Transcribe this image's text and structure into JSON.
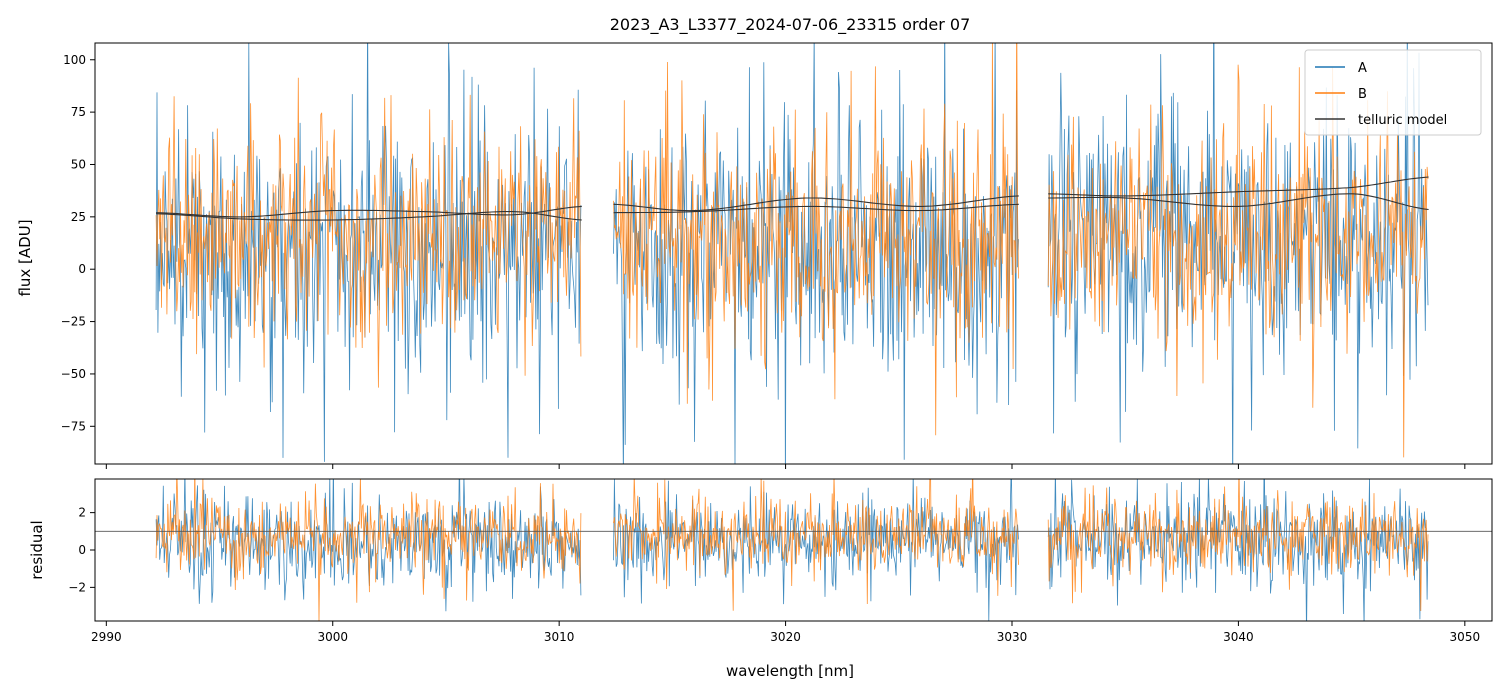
{
  "chart_data": {
    "type": "line",
    "title": "2023_A3_L3377_2024-07-06_23315  order 07",
    "xlabel": "wavelength [nm]",
    "xlim": [
      2989.5,
      3051.2
    ],
    "xticks": [
      2990,
      3000,
      3010,
      3020,
      3030,
      3040,
      3050
    ],
    "xtick_labels": [
      "2990",
      "3000",
      "3010",
      "3020",
      "3030",
      "3040",
      "3050"
    ],
    "segments": [
      [
        2992.2,
        3011.0
      ],
      [
        3012.4,
        3030.3
      ],
      [
        3031.6,
        3048.4
      ]
    ],
    "legend": {
      "position": "top-right",
      "entries": [
        "A",
        "B",
        "telluric model"
      ]
    },
    "colors": {
      "A": "#1f77b4",
      "B": "#ff7f0e",
      "model": "#333333"
    },
    "panels": [
      {
        "id": "flux",
        "ylabel": "flux [ADU]",
        "ylim": [
          -93,
          108
        ],
        "yticks": [
          -75,
          -50,
          -25,
          0,
          25,
          50,
          75,
          100
        ],
        "ytick_labels": [
          "−75",
          "−50",
          "−25",
          "0",
          "25",
          "50",
          "75",
          "100"
        ],
        "series": [
          {
            "name": "A",
            "center": 12,
            "noise_sigma": 30
          },
          {
            "name": "B",
            "center": 15,
            "noise_sigma": 24
          }
        ],
        "telluric_model": [
          {
            "segment": 0,
            "x": [
              2992.2,
              2996,
              3000,
              3004,
              3008,
              3011.0
            ],
            "y_upper": [
              27,
              25,
              28,
              27.5,
              26,
              30
            ],
            "y_lower": [
              26.5,
              24,
              23.5,
              25,
              27.5,
              23.5
            ]
          },
          {
            "segment": 1,
            "x": [
              3012.4,
              3016,
              3021,
              3026,
              3030.3
            ],
            "y_upper": [
              31,
              28,
              34,
              30,
              35
            ],
            "y_lower": [
              27,
              27.5,
              30,
              28,
              31
            ]
          },
          {
            "segment": 2,
            "x": [
              3031.6,
              3035,
              3040,
              3045,
              3048.4
            ],
            "y_upper": [
              36,
              35,
              37,
              39,
              44
            ],
            "y_lower": [
              34,
              34,
              30,
              36,
              28.5
            ]
          }
        ]
      },
      {
        "id": "residual",
        "ylabel": "residual",
        "ylim": [
          -3.8,
          3.8
        ],
        "yticks": [
          -2,
          0,
          2
        ],
        "ytick_labels": [
          "−2",
          "0",
          "2"
        ],
        "series": [
          {
            "name": "A",
            "center": 0.5,
            "noise_sigma": 1.2
          },
          {
            "name": "B",
            "center": 0.8,
            "noise_sigma": 1.0
          }
        ],
        "reference_line": 1
      }
    ]
  }
}
